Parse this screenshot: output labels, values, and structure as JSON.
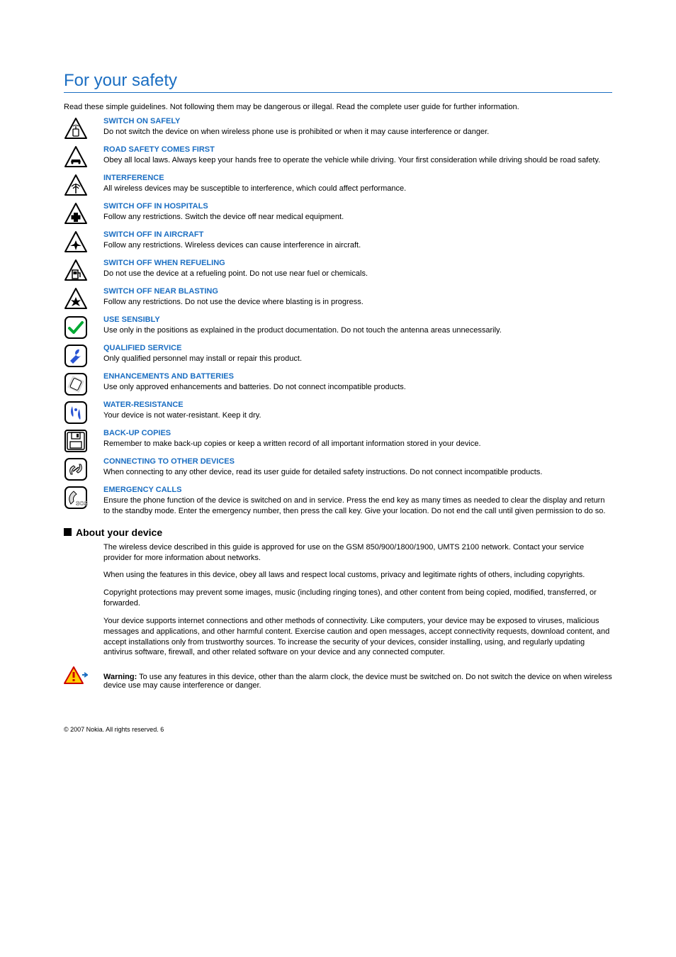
{
  "page_title": "For your safety",
  "intro": "Read these simple guidelines. Not following them may be dangerous or illegal. Read the complete user guide for further information.",
  "items": [
    {
      "icon": "switch-on",
      "title": "SWITCH ON SAFELY",
      "text": "Do not switch the device on when wireless phone use is prohibited or when it may cause interference or danger."
    },
    {
      "icon": "car",
      "title": "ROAD SAFETY COMES FIRST",
      "text": "Obey all local laws. Always keep your hands free to operate the vehicle while driving. Your first consideration while driving should be road safety."
    },
    {
      "icon": "interference",
      "title": "INTERFERENCE",
      "text": "All wireless devices may be susceptible to interference, which could affect performance."
    },
    {
      "icon": "hospital",
      "title": "SWITCH OFF IN HOSPITALS",
      "text": "Follow any restrictions. Switch the device off near medical equipment."
    },
    {
      "icon": "aircraft",
      "title": "SWITCH OFF IN AIRCRAFT",
      "text": "Follow any restrictions. Wireless devices can cause interference in aircraft."
    },
    {
      "icon": "fuel",
      "title": "SWITCH OFF WHEN REFUELING",
      "text": "Do not use the device at a refueling point. Do not use near fuel or chemicals."
    },
    {
      "icon": "blast",
      "title": "SWITCH OFF NEAR BLASTING",
      "text": "Follow any restrictions. Do not use the device where blasting is in progress."
    },
    {
      "icon": "check",
      "title": "USE SENSIBLY",
      "text": "Use only in the positions as explained in the product documentation. Do not touch the antenna areas unnecessarily."
    },
    {
      "icon": "wrench",
      "title": "QUALIFIED SERVICE",
      "text": "Only qualified personnel may install or repair this product."
    },
    {
      "icon": "battery",
      "title": "ENHANCEMENTS AND BATTERIES",
      "text": "Use only approved enhancements and batteries. Do not connect incompatible products."
    },
    {
      "icon": "water",
      "title": "WATER-RESISTANCE",
      "text": "Your device is not water-resistant. Keep it dry."
    },
    {
      "icon": "disk",
      "title": "BACK-UP COPIES",
      "text": "Remember to make back-up copies or keep a written record of all important information stored in your device."
    },
    {
      "icon": "connect",
      "title": "CONNECTING TO OTHER DEVICES",
      "text": "When connecting to any other device, read its user guide for detailed safety instructions. Do not connect incompatible products."
    },
    {
      "icon": "sos",
      "title": "EMERGENCY CALLS",
      "text": "Ensure the phone function of the device is switched on and in service. Press the end key as many times as needed to clear the display and return to the standby mode. Enter the emergency number, then press the call key. Give your location. Do not end the call until given permission to do so."
    }
  ],
  "about": {
    "heading": "About your device",
    "p1": "The wireless device described in this guide is approved for use on the GSM 850/900/1800/1900, UMTS 2100 network. Contact your service provider for more information about networks.",
    "p2": "When using the features in this device, obey all laws and respect local customs, privacy and legitimate rights of others, including copyrights.",
    "p3": "Copyright protections may prevent some images, music (including ringing tones), and other content from being copied, modified, transferred, or forwarded.",
    "p4": "Your device supports internet connections and other methods of connectivity. Like computers, your device may be exposed to viruses, malicious messages and applications, and other harmful content. Exercise caution and open messages, accept connectivity requests, download content, and accept installations only from trustworthy sources. To increase the security of your devices, consider installing, using, and regularly updating antivirus software, firewall, and other related software on your device and any connected computer.",
    "warning_label": "Warning:",
    "warning_text": "  To use any features in this device, other than the alarm clock, the device must be switched on. Do not switch the device on when wireless device use may cause interference or danger."
  },
  "footer": {
    "copyright": "© 2007 Nokia. All rights reserved.",
    "page": "6"
  },
  "colors": {
    "heading": "#1b6ec2",
    "border": "#1b6ec2",
    "text": "#000000"
  }
}
